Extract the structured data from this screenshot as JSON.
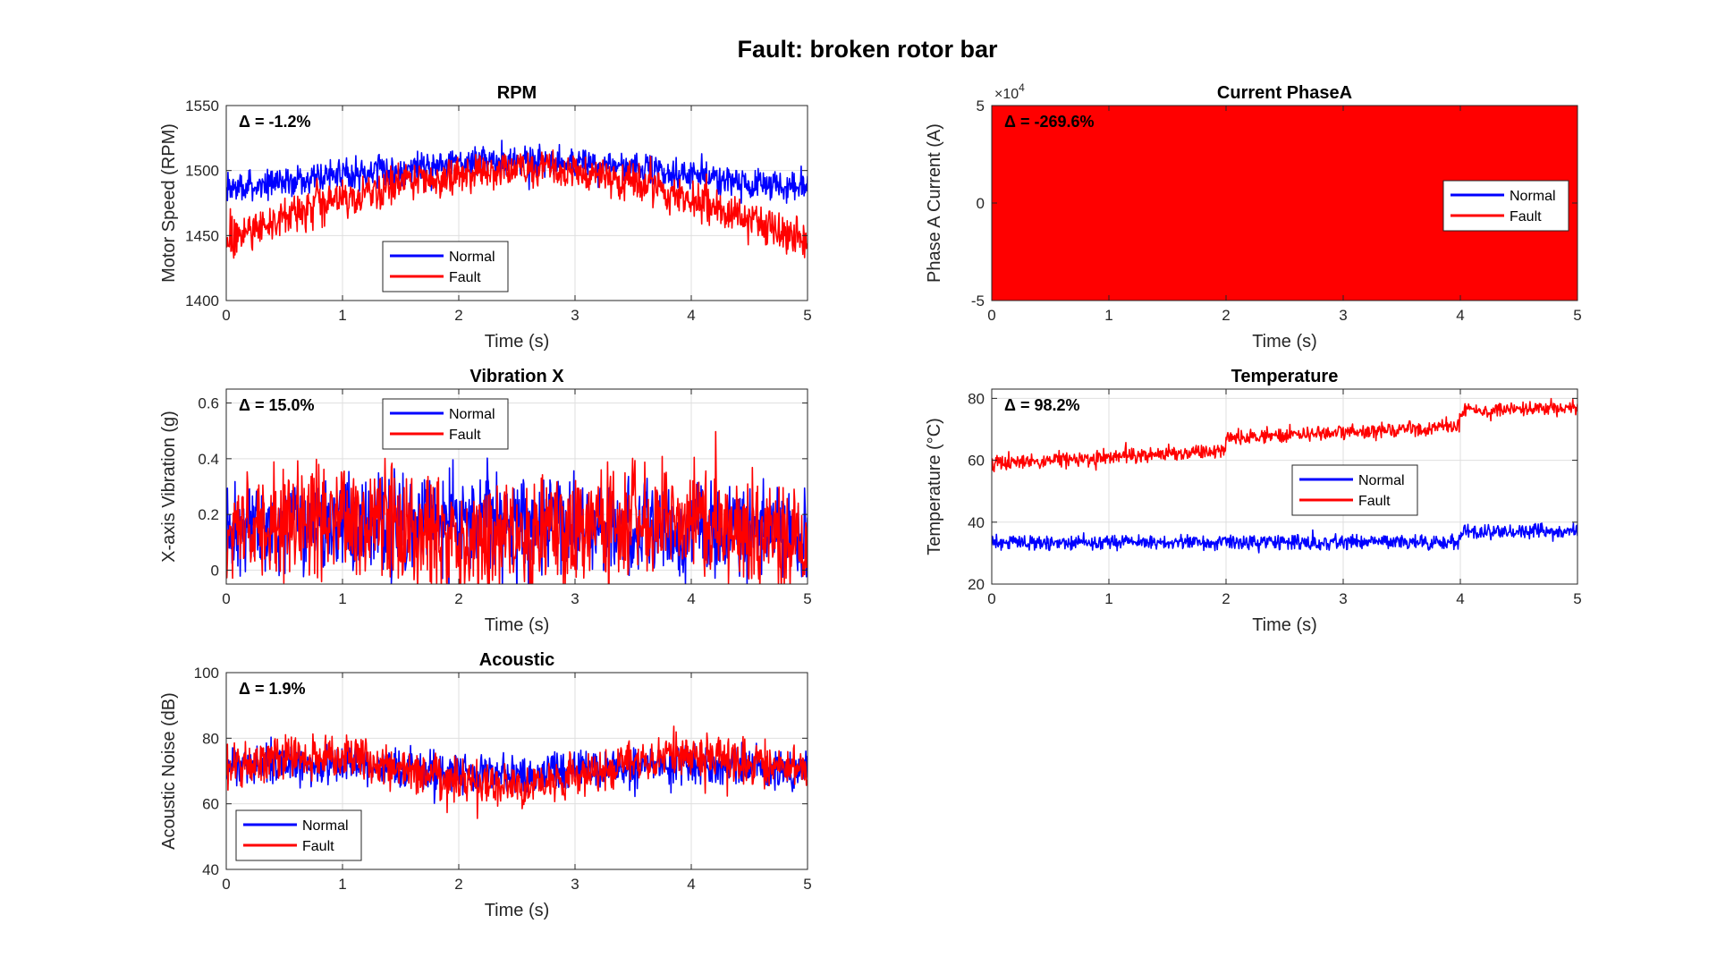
{
  "figure": {
    "title": "Fault: broken rotor bar"
  },
  "chart_data": [
    {
      "id": "rpm",
      "type": "line",
      "title": "RPM",
      "xlabel": "Time (s)",
      "ylabel": "Motor Speed (RPM)",
      "xlim": [
        0,
        5
      ],
      "ylim": [
        1400,
        1550
      ],
      "xticks": [
        0,
        1,
        2,
        3,
        4,
        5
      ],
      "yticks": [
        1400,
        1450,
        1500,
        1550
      ],
      "grid": true,
      "delta_text": "Δ = -1.2%",
      "legend_position": "bottom-center",
      "series": [
        {
          "name": "Normal",
          "color": "#0000ff",
          "x": [
            0,
            0.5,
            1,
            1.5,
            2,
            2.5,
            3,
            3.5,
            4,
            4.5,
            5
          ],
          "y": [
            1485,
            1491,
            1497,
            1502,
            1506,
            1508,
            1506,
            1502,
            1496,
            1490,
            1485
          ],
          "noise_amplitude": 14
        },
        {
          "name": "Fault",
          "color": "#ff0000",
          "x": [
            0,
            0.5,
            1,
            1.5,
            2,
            2.5,
            3,
            3.5,
            4,
            4.5,
            5
          ],
          "y": [
            1445,
            1462,
            1478,
            1490,
            1498,
            1502,
            1500,
            1492,
            1478,
            1462,
            1445
          ],
          "noise_amplitude": 18
        }
      ]
    },
    {
      "id": "current",
      "type": "line",
      "title": "Current PhaseA",
      "xlabel": "Time (s)",
      "ylabel": "Phase A Current (A)",
      "xlim": [
        0,
        5
      ],
      "ylim": [
        -5,
        5
      ],
      "y_multiplier": "×10",
      "y_exponent": "4",
      "xticks": [
        0,
        1,
        2,
        3,
        4,
        5
      ],
      "yticks": [
        -5,
        0,
        5
      ],
      "grid": true,
      "delta_text": "Δ = -269.6%",
      "legend_position": "right",
      "series": [
        {
          "name": "Normal",
          "color": "#0000ff",
          "x": [
            0,
            5
          ],
          "y": [
            0,
            0
          ],
          "band": [
            -5,
            5
          ]
        },
        {
          "name": "Fault",
          "color": "#ff0000",
          "x": [
            0,
            5
          ],
          "y": [
            0,
            0
          ],
          "band": [
            -5,
            5
          ]
        }
      ]
    },
    {
      "id": "vibration",
      "type": "line",
      "title": "Vibration X",
      "xlabel": "Time (s)",
      "ylabel": "X-axis Vibration (g)",
      "xlim": [
        0,
        5
      ],
      "ylim": [
        -0.05,
        0.65
      ],
      "xticks": [
        0,
        1,
        2,
        3,
        4,
        5
      ],
      "yticks": [
        0,
        0.2,
        0.4,
        0.6
      ],
      "grid": true,
      "delta_text": "Δ = 15.0%",
      "legend_position": "top-center",
      "series": [
        {
          "name": "Normal",
          "color": "#0000ff",
          "x": [
            0,
            0.5,
            1,
            1.5,
            2,
            2.5,
            3,
            3.5,
            4,
            4.5,
            5
          ],
          "y": [
            0.14,
            0.16,
            0.17,
            0.17,
            0.18,
            0.17,
            0.16,
            0.15,
            0.15,
            0.15,
            0.14
          ],
          "noise_amplitude": 0.2
        },
        {
          "name": "Fault",
          "color": "#ff0000",
          "x": [
            0,
            0.5,
            1,
            1.5,
            2,
            2.5,
            3,
            3.5,
            4,
            4.5,
            5
          ],
          "y": [
            0.15,
            0.18,
            0.19,
            0.16,
            0.12,
            0.1,
            0.14,
            0.19,
            0.2,
            0.16,
            0.11
          ],
          "noise_amplitude": 0.24
        }
      ]
    },
    {
      "id": "temperature",
      "type": "line",
      "title": "Temperature",
      "xlabel": "Time (s)",
      "ylabel": "Temperature (°C)",
      "xlim": [
        0,
        5
      ],
      "ylim": [
        20,
        83
      ],
      "xticks": [
        0,
        1,
        2,
        3,
        4,
        5
      ],
      "yticks": [
        20,
        40,
        60,
        80
      ],
      "grid": true,
      "delta_text": "Δ = 98.2%",
      "legend_position": "center",
      "series": [
        {
          "name": "Normal",
          "color": "#0000ff",
          "x": [
            0,
            1.99,
            2,
            3.99,
            4,
            5
          ],
          "y": [
            33.5,
            33.5,
            33.5,
            33.5,
            37,
            37
          ],
          "noise_amplitude": 2.8
        },
        {
          "name": "Fault",
          "color": "#ff0000",
          "x": [
            0,
            1.99,
            2,
            3.99,
            4,
            5
          ],
          "y": [
            59,
            63,
            67,
            71,
            76,
            77
          ],
          "noise_amplitude": 2.8
        }
      ]
    },
    {
      "id": "acoustic",
      "type": "line",
      "title": "Acoustic",
      "xlabel": "Time (s)",
      "ylabel": "Acoustic Noise (dB)",
      "xlim": [
        0,
        5
      ],
      "ylim": [
        40,
        100
      ],
      "xticks": [
        0,
        1,
        2,
        3,
        4,
        5
      ],
      "yticks": [
        40,
        60,
        80,
        100
      ],
      "grid": true,
      "delta_text": "Δ = 1.9%",
      "legend_position": "bottom-left",
      "series": [
        {
          "name": "Normal",
          "color": "#0000ff",
          "x": [
            0,
            0.5,
            1,
            1.5,
            2,
            2.5,
            3,
            3.5,
            4,
            4.5,
            5
          ],
          "y": [
            71,
            72,
            72,
            71,
            70,
            69,
            70,
            71,
            72,
            71,
            70
          ],
          "noise_amplitude": 7
        },
        {
          "name": "Fault",
          "color": "#ff0000",
          "x": [
            0,
            0.5,
            1,
            1.5,
            2,
            2.5,
            3,
            3.5,
            4,
            4.5,
            5
          ],
          "y": [
            71,
            74,
            75,
            71,
            67,
            65,
            69,
            73,
            75,
            73,
            70
          ],
          "noise_amplitude": 8
        }
      ]
    }
  ]
}
